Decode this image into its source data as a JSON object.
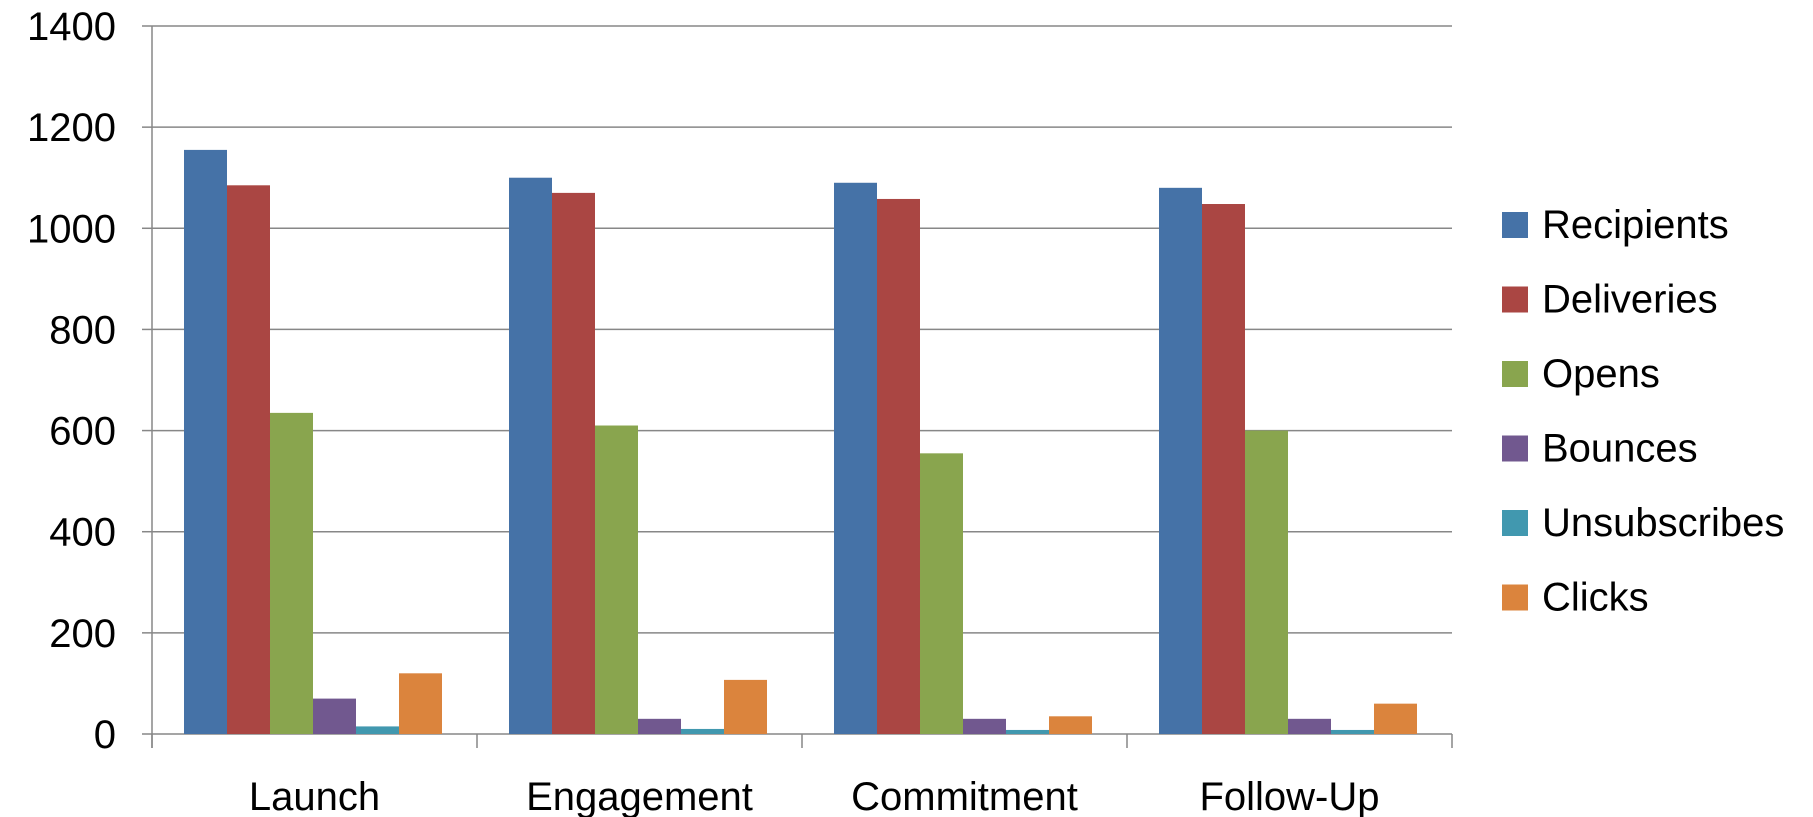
{
  "chart_data": {
    "type": "bar",
    "title": "",
    "xlabel": "",
    "ylabel": "",
    "categories": [
      "Launch",
      "Engagement",
      "Commitment",
      "Follow-Up"
    ],
    "ylim": [
      0,
      1400
    ],
    "yticks": [
      "0",
      "200",
      "400",
      "600",
      "800",
      "1000",
      "1200",
      "1400"
    ],
    "grid": true,
    "legend_position": "right",
    "series": [
      {
        "name": "Recipients",
        "color": "#4572A7",
        "values": [
          1155,
          1100,
          1090,
          1080
        ]
      },
      {
        "name": "Deliveries",
        "color": "#AA4643",
        "values": [
          1085,
          1070,
          1058,
          1048
        ]
      },
      {
        "name": "Opens",
        "color": "#89A54E",
        "values": [
          635,
          610,
          555,
          600
        ]
      },
      {
        "name": "Bounces",
        "color": "#71588F",
        "values": [
          70,
          30,
          30,
          30
        ]
      },
      {
        "name": "Unsubscribes",
        "color": "#4198AF",
        "values": [
          15,
          10,
          8,
          8
        ]
      },
      {
        "name": "Clicks",
        "color": "#DB843D",
        "values": [
          120,
          107,
          35,
          60
        ]
      }
    ]
  }
}
